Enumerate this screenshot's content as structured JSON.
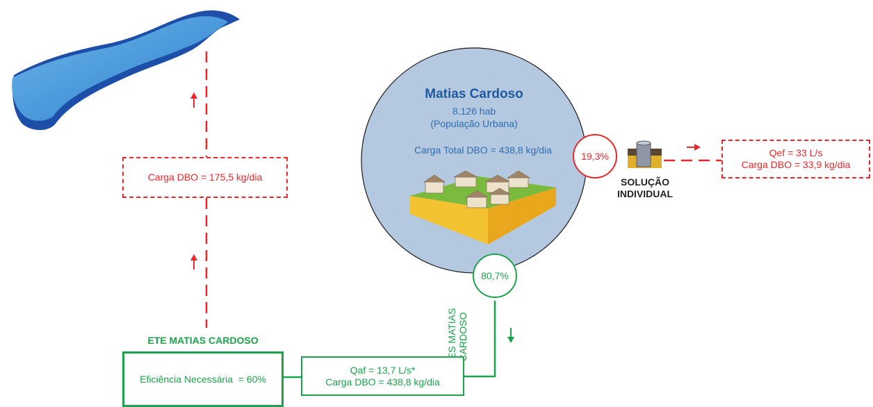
{
  "city": {
    "name": "Matias Cardoso",
    "population": "8.126 hab",
    "population_note": "(População Urbana)",
    "total_load": "Carga Total DBO = 438,8 kg/dia"
  },
  "river_load": "Carga DBO = 175,5 kg/dia",
  "individual": {
    "percent": "19,3%",
    "label_line1": "SOLUÇÃO",
    "label_line2": "INDIVIDUAL",
    "flow": "Qef = 33 L/s",
    "load": "Carga DBO = 33,9 kg/dia"
  },
  "collective": {
    "percent": "80,7%",
    "ses_line1": "SES MATIAS",
    "ses_line2": "CARDOSO",
    "flow": "Qaf = 13,7 L/s*",
    "load": "Carga DBO = 438,8 kg/dia"
  },
  "ete": {
    "title": "ETE MATIAS CARDOSO",
    "efficiency": "Eficiência Necessária  = 60%"
  },
  "colors": {
    "red": "#e8272a",
    "green": "#1aa34a",
    "blue": "#2d6db0",
    "circle_fill": "#b4c8e0"
  }
}
